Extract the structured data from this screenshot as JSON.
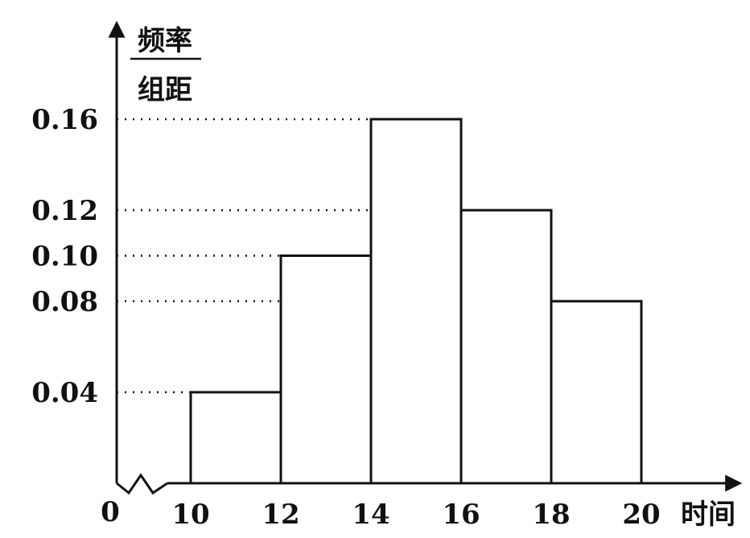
{
  "chart_data": {
    "type": "bar",
    "subtype": "histogram",
    "bins": [
      {
        "from": 10,
        "to": 12,
        "value": 0.04
      },
      {
        "from": 12,
        "to": 14,
        "value": 0.1
      },
      {
        "from": 14,
        "to": 16,
        "value": 0.16
      },
      {
        "from": 16,
        "to": 18,
        "value": 0.12
      },
      {
        "from": 18,
        "to": 20,
        "value": 0.08
      }
    ],
    "x_ticks": [
      "10",
      "12",
      "14",
      "16",
      "18",
      "20"
    ],
    "y_ticks": [
      "0.04",
      "0.08",
      "0.10",
      "0.12",
      "0.16"
    ],
    "origin_label": "0",
    "xlabel": "时间",
    "ylabel_numerator": "频率",
    "ylabel_denominator": "组距",
    "xlim": [
      10,
      20
    ],
    "ylim": [
      0,
      0.16
    ],
    "axis_break": true,
    "reference_lines": "dotted",
    "grid": false,
    "colors": {
      "stroke": "#111111",
      "bar_fill": "#ffffff"
    }
  }
}
